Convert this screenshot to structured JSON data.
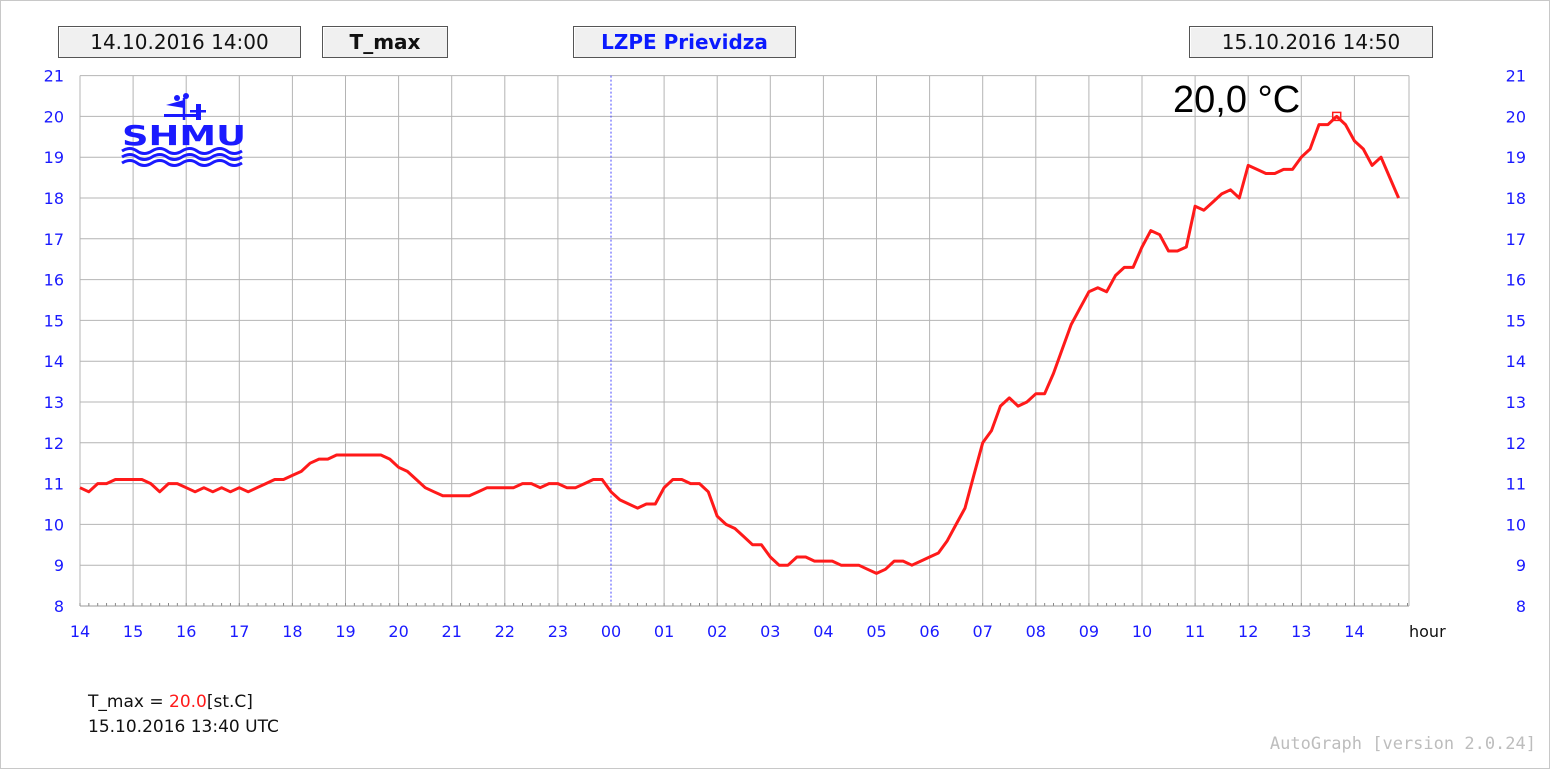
{
  "header": {
    "start_time": "14.10.2016 14:00",
    "parameter": "T_max",
    "station": "LZPE Prievidza",
    "end_time": "15.10.2016 14:50"
  },
  "logo": {
    "text": "SHMU",
    "color": "#1a1aff"
  },
  "max_label": "20,0 °C",
  "info": {
    "param": "T_max",
    "equals": " = ",
    "value": "20.0",
    "unit": "[st.C]",
    "timestamp": "15.10.2016 13:40 UTC"
  },
  "version": "AutoGraph [version 2.0.24]",
  "colors": {
    "series": "#ff1a1a",
    "axis_text": "#1a1aff",
    "grid": "#b4b4b4",
    "midnight": "#4a4aff"
  },
  "chart_data": {
    "type": "line",
    "xlabel": "hour",
    "x_tick_labels": [
      "14",
      "15",
      "16",
      "17",
      "18",
      "19",
      "20",
      "21",
      "22",
      "23",
      "00",
      "01",
      "02",
      "03",
      "04",
      "05",
      "06",
      "07",
      "08",
      "09",
      "10",
      "11",
      "12",
      "13",
      "14"
    ],
    "y_ticks": [
      8,
      9,
      10,
      11,
      12,
      13,
      14,
      15,
      16,
      17,
      18,
      19,
      20,
      21
    ],
    "ylim": [
      8,
      21
    ],
    "xlim": [
      "14.10.2016 14:00",
      "15.10.2016 14:50"
    ],
    "grid": true,
    "series": [
      {
        "interval_minutes": 10,
        "start": "14.10.2016 14:00",
        "values": [
          10.9,
          10.8,
          11.0,
          11.0,
          11.1,
          11.1,
          11.1,
          11.1,
          11.0,
          10.8,
          11.0,
          11.0,
          10.9,
          10.8,
          10.9,
          10.8,
          10.9,
          10.8,
          10.9,
          10.8,
          10.9,
          11.0,
          11.1,
          11.1,
          11.2,
          11.3,
          11.5,
          11.6,
          11.6,
          11.7,
          11.7,
          11.7,
          11.7,
          11.7,
          11.7,
          11.6,
          11.4,
          11.3,
          11.1,
          10.9,
          10.8,
          10.7,
          10.7,
          10.7,
          10.7,
          10.8,
          10.9,
          10.9,
          10.9,
          10.9,
          11.0,
          11.0,
          10.9,
          11.0,
          11.0,
          10.9,
          10.9,
          11.0,
          11.1,
          11.1,
          10.8,
          10.6,
          10.5,
          10.4,
          10.5,
          10.5,
          10.9,
          11.1,
          11.1,
          11.0,
          11.0,
          10.8,
          10.2,
          10.0,
          9.9,
          9.7,
          9.5,
          9.5,
          9.2,
          9.0,
          9.0,
          9.2,
          9.2,
          9.1,
          9.1,
          9.1,
          9.0,
          9.0,
          9.0,
          8.9,
          8.8,
          8.9,
          9.1,
          9.1,
          9.0,
          9.1,
          9.2,
          9.3,
          9.6,
          10.0,
          10.4,
          11.2,
          12.0,
          12.3,
          12.9,
          13.1,
          12.9,
          13.0,
          13.2,
          13.2,
          13.7,
          14.3,
          14.9,
          15.3,
          15.7,
          15.8,
          15.7,
          16.1,
          16.3,
          16.3,
          16.8,
          17.2,
          17.1,
          16.7,
          16.7,
          16.8,
          17.8,
          17.7,
          17.9,
          18.1,
          18.2,
          18.0,
          18.8,
          18.7,
          18.6,
          18.6,
          18.7,
          18.7,
          19.0,
          19.2,
          19.8,
          19.8,
          20.0,
          19.8,
          19.4,
          19.2,
          18.8,
          19.0,
          18.5,
          18.0
        ]
      }
    ],
    "annotations": [
      {
        "time": "15.10.2016 13:40",
        "value": 20.0,
        "marker": "open-square"
      }
    ]
  }
}
